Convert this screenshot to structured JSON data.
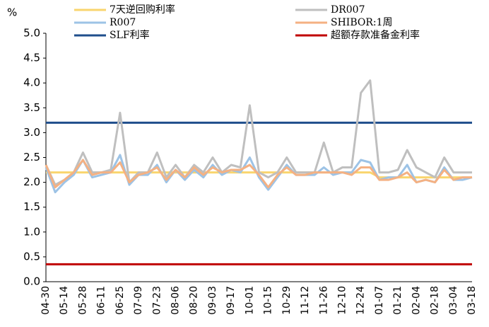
{
  "chart_data": {
    "type": "line",
    "unit": "%",
    "categories": [
      "04-30",
      null,
      "05-14",
      null,
      "05-28",
      null,
      "06-11",
      null,
      "06-25",
      null,
      "07-09",
      null,
      "07-23",
      null,
      "08-06",
      null,
      "08-20",
      null,
      "09-03",
      null,
      "09-17",
      null,
      "10-01",
      null,
      "10-15",
      null,
      "10-29",
      null,
      "11-12",
      null,
      "11-26",
      null,
      "12-10",
      null,
      "12-24",
      null,
      "01-07",
      null,
      "01-21",
      null,
      "02-04",
      null,
      "02-18",
      null,
      "03-04",
      null,
      "03-18"
    ],
    "series": [
      {
        "name": "7天逆回购利率",
        "color": "#f9d56e",
        "values": [
          2.2,
          2.2,
          2.2,
          2.2,
          2.2,
          2.2,
          2.2,
          2.2,
          2.2,
          2.2,
          2.2,
          2.2,
          2.2,
          2.2,
          2.2,
          2.2,
          2.2,
          2.2,
          2.2,
          2.2,
          2.2,
          2.2,
          2.2,
          2.2,
          2.2,
          2.2,
          2.2,
          2.2,
          2.2,
          2.2,
          2.2,
          2.2,
          2.2,
          2.2,
          2.2,
          2.2,
          2.1,
          2.1,
          2.1,
          2.1,
          2.1,
          2.1,
          2.1,
          2.1,
          2.1,
          2.1,
          2.1
        ]
      },
      {
        "name": "DR007",
        "color": "#bfbfbf",
        "values": [
          2.35,
          1.95,
          2.05,
          2.2,
          2.6,
          2.2,
          2.2,
          2.25,
          3.4,
          2.0,
          2.2,
          2.2,
          2.6,
          2.1,
          2.35,
          2.1,
          2.35,
          2.2,
          2.5,
          2.2,
          2.35,
          2.3,
          3.55,
          2.2,
          2.1,
          2.2,
          2.5,
          2.2,
          2.2,
          2.2,
          2.8,
          2.2,
          2.3,
          2.3,
          3.8,
          4.05,
          2.2,
          2.2,
          2.25,
          2.65,
          2.3,
          2.2,
          2.1,
          2.5,
          2.2,
          2.2,
          2.2
        ]
      },
      {
        "name": "R007",
        "color": "#9dc3e6",
        "values": [
          2.3,
          1.8,
          2.0,
          2.15,
          2.45,
          2.1,
          2.15,
          2.2,
          2.55,
          1.95,
          2.15,
          2.15,
          2.35,
          2.0,
          2.25,
          2.05,
          2.25,
          2.1,
          2.35,
          2.15,
          2.25,
          2.2,
          2.5,
          2.1,
          1.85,
          2.1,
          2.35,
          2.15,
          2.15,
          2.15,
          2.3,
          2.15,
          2.2,
          2.2,
          2.45,
          2.4,
          2.05,
          2.1,
          2.1,
          2.35,
          2.0,
          2.05,
          2.0,
          2.3,
          2.05,
          2.05,
          2.1
        ]
      },
      {
        "name": "SHIBOR:1周",
        "color": "#f4b183",
        "values": [
          2.35,
          1.9,
          2.05,
          2.2,
          2.45,
          2.15,
          2.2,
          2.2,
          2.4,
          2.0,
          2.15,
          2.2,
          2.3,
          2.05,
          2.25,
          2.1,
          2.3,
          2.15,
          2.3,
          2.2,
          2.25,
          2.25,
          2.35,
          2.15,
          1.9,
          2.15,
          2.3,
          2.15,
          2.15,
          2.2,
          2.2,
          2.2,
          2.2,
          2.15,
          2.3,
          2.3,
          2.05,
          2.05,
          2.1,
          2.2,
          2.0,
          2.05,
          2.0,
          2.25,
          2.05,
          2.1,
          2.1
        ]
      },
      {
        "name": "SLF利率",
        "color": "#1f4e8c",
        "values": [
          3.2,
          3.2,
          3.2,
          3.2,
          3.2,
          3.2,
          3.2,
          3.2,
          3.2,
          3.2,
          3.2,
          3.2,
          3.2,
          3.2,
          3.2,
          3.2,
          3.2,
          3.2,
          3.2,
          3.2,
          3.2,
          3.2,
          3.2,
          3.2,
          3.2,
          3.2,
          3.2,
          3.2,
          3.2,
          3.2,
          3.2,
          3.2,
          3.2,
          3.2,
          3.2,
          3.2,
          3.2,
          3.2,
          3.2,
          3.2,
          3.2,
          3.2,
          3.2,
          3.2,
          3.2,
          3.2,
          3.2
        ]
      },
      {
        "name": "超额存款准备金利率",
        "color": "#c00000",
        "values": [
          0.35,
          0.35,
          0.35,
          0.35,
          0.35,
          0.35,
          0.35,
          0.35,
          0.35,
          0.35,
          0.35,
          0.35,
          0.35,
          0.35,
          0.35,
          0.35,
          0.35,
          0.35,
          0.35,
          0.35,
          0.35,
          0.35,
          0.35,
          0.35,
          0.35,
          0.35,
          0.35,
          0.35,
          0.35,
          0.35,
          0.35,
          0.35,
          0.35,
          0.35,
          0.35,
          0.35,
          0.35,
          0.35,
          0.35,
          0.35,
          0.35,
          0.35,
          0.35,
          0.35,
          0.35,
          0.35,
          0.35
        ]
      }
    ],
    "ylim": [
      0,
      5
    ],
    "yticks": [
      {
        "value": 0,
        "label": "0.0"
      },
      {
        "value": 0.5,
        "label": "0.5"
      },
      {
        "value": 1,
        "label": "1.0"
      },
      {
        "value": 1.5,
        "label": "1.5"
      },
      {
        "value": 2,
        "label": "2.0"
      },
      {
        "value": 2.5,
        "label": "2.5"
      },
      {
        "value": 3,
        "label": "3.0"
      },
      {
        "value": 3.5,
        "label": "3.5"
      },
      {
        "value": 4,
        "label": "4.0"
      },
      {
        "value": 4.5,
        "label": "4.5"
      },
      {
        "value": 5,
        "label": "5.0"
      }
    ],
    "grid": false
  }
}
